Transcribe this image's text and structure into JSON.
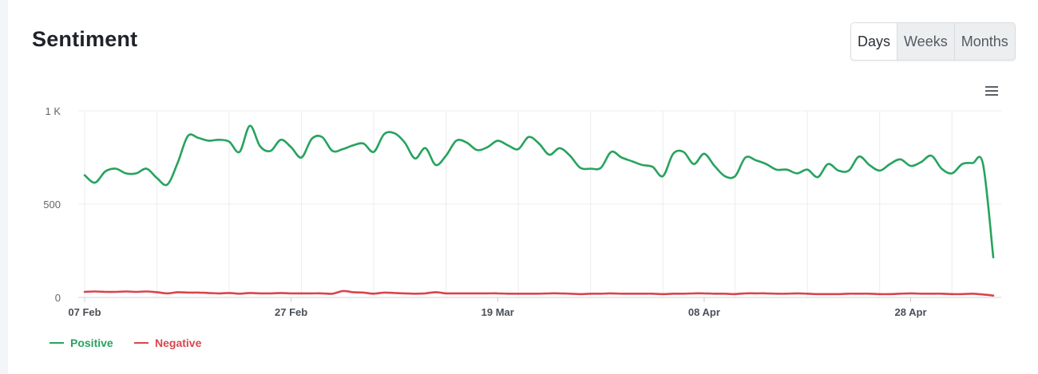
{
  "header": {
    "title": "Sentiment"
  },
  "range_buttons": [
    {
      "label": "Days",
      "active": true
    },
    {
      "label": "Weeks",
      "active": false
    },
    {
      "label": "Months",
      "active": false
    }
  ],
  "menu_icon": "hamburger-menu-icon",
  "legend": [
    {
      "label": "Positive",
      "color": "#27a35e"
    },
    {
      "label": "Negative",
      "color": "#d9454c"
    }
  ],
  "chart_data": {
    "type": "line",
    "title": "Sentiment",
    "xlabel": "",
    "ylabel": "",
    "ylim": [
      0,
      1000
    ],
    "y_ticks": [
      0,
      500,
      1000
    ],
    "y_tick_labels": [
      "0",
      "500",
      "1 K"
    ],
    "x_start": "07 Feb",
    "x_end": "06 May",
    "x_tick_labels": [
      "07 Feb",
      "27 Feb",
      "19 Mar",
      "08 Apr",
      "28 Apr"
    ],
    "x_tick_indices": [
      0,
      20,
      40,
      60,
      80
    ],
    "grid": true,
    "legend_position": "bottom-left",
    "series": [
      {
        "name": "Positive",
        "color": "#27a35e",
        "values": [
          655,
          615,
          675,
          690,
          665,
          665,
          690,
          640,
          605,
          720,
          865,
          855,
          840,
          845,
          835,
          780,
          920,
          810,
          785,
          845,
          805,
          750,
          850,
          860,
          785,
          795,
          815,
          825,
          780,
          875,
          880,
          830,
          745,
          800,
          710,
          760,
          840,
          830,
          790,
          805,
          840,
          815,
          795,
          860,
          825,
          765,
          800,
          760,
          695,
          690,
          695,
          780,
          750,
          730,
          710,
          700,
          650,
          770,
          780,
          715,
          770,
          705,
          650,
          650,
          750,
          735,
          715,
          685,
          685,
          665,
          685,
          645,
          715,
          680,
          680,
          755,
          710,
          680,
          715,
          740,
          705,
          725,
          760,
          690,
          665,
          715,
          720,
          715,
          215
        ]
      },
      {
        "name": "Negative",
        "color": "#d9454c",
        "values": [
          30,
          32,
          30,
          30,
          32,
          30,
          32,
          28,
          22,
          28,
          26,
          26,
          24,
          22,
          24,
          20,
          24,
          22,
          22,
          24,
          22,
          22,
          22,
          22,
          20,
          34,
          28,
          26,
          20,
          26,
          24,
          22,
          20,
          22,
          28,
          22,
          22,
          22,
          22,
          22,
          22,
          20,
          20,
          20,
          20,
          22,
          22,
          20,
          18,
          20,
          20,
          22,
          20,
          20,
          20,
          20,
          18,
          20,
          20,
          22,
          22,
          20,
          20,
          18,
          22,
          22,
          22,
          20,
          20,
          22,
          20,
          18,
          18,
          18,
          20,
          20,
          20,
          18,
          18,
          20,
          22,
          20,
          20,
          20,
          18,
          18,
          20,
          16,
          10
        ]
      }
    ]
  }
}
